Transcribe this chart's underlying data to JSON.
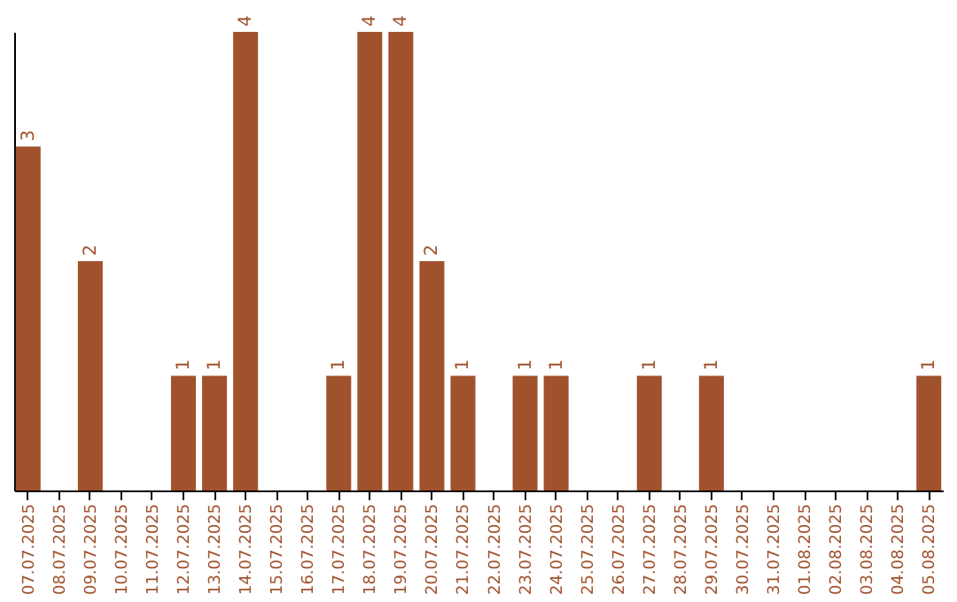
{
  "chart_data": {
    "type": "bar",
    "categories": [
      "07.07.2025",
      "08.07.2025",
      "09.07.2025",
      "10.07.2025",
      "11.07.2025",
      "12.07.2025",
      "13.07.2025",
      "14.07.2025",
      "15.07.2025",
      "16.07.2025",
      "17.07.2025",
      "18.07.2025",
      "19.07.2025",
      "20.07.2025",
      "21.07.2025",
      "22.07.2025",
      "23.07.2025",
      "24.07.2025",
      "25.07.2025",
      "26.07.2025",
      "27.07.2025",
      "28.07.2025",
      "29.07.2025",
      "30.07.2025",
      "31.07.2025",
      "01.08.2025",
      "02.08.2025",
      "03.08.2025",
      "04.08.2025",
      "05.08.2025"
    ],
    "values": [
      3,
      0,
      2,
      0,
      0,
      1,
      1,
      4,
      0,
      0,
      1,
      4,
      4,
      2,
      1,
      0,
      1,
      1,
      0,
      0,
      1,
      0,
      1,
      0,
      0,
      0,
      0,
      0,
      0,
      1
    ],
    "value_labels": [
      "3",
      null,
      "2",
      null,
      null,
      "1",
      "1",
      "4",
      null,
      null,
      "1",
      "4",
      "4",
      "2",
      "1",
      null,
      "1",
      "1",
      null,
      null,
      "1",
      null,
      "1",
      null,
      null,
      null,
      null,
      null,
      null,
      "1"
    ],
    "color": "#a0522d",
    "ylim": [
      0,
      4
    ],
    "tick_labels": "x"
  }
}
